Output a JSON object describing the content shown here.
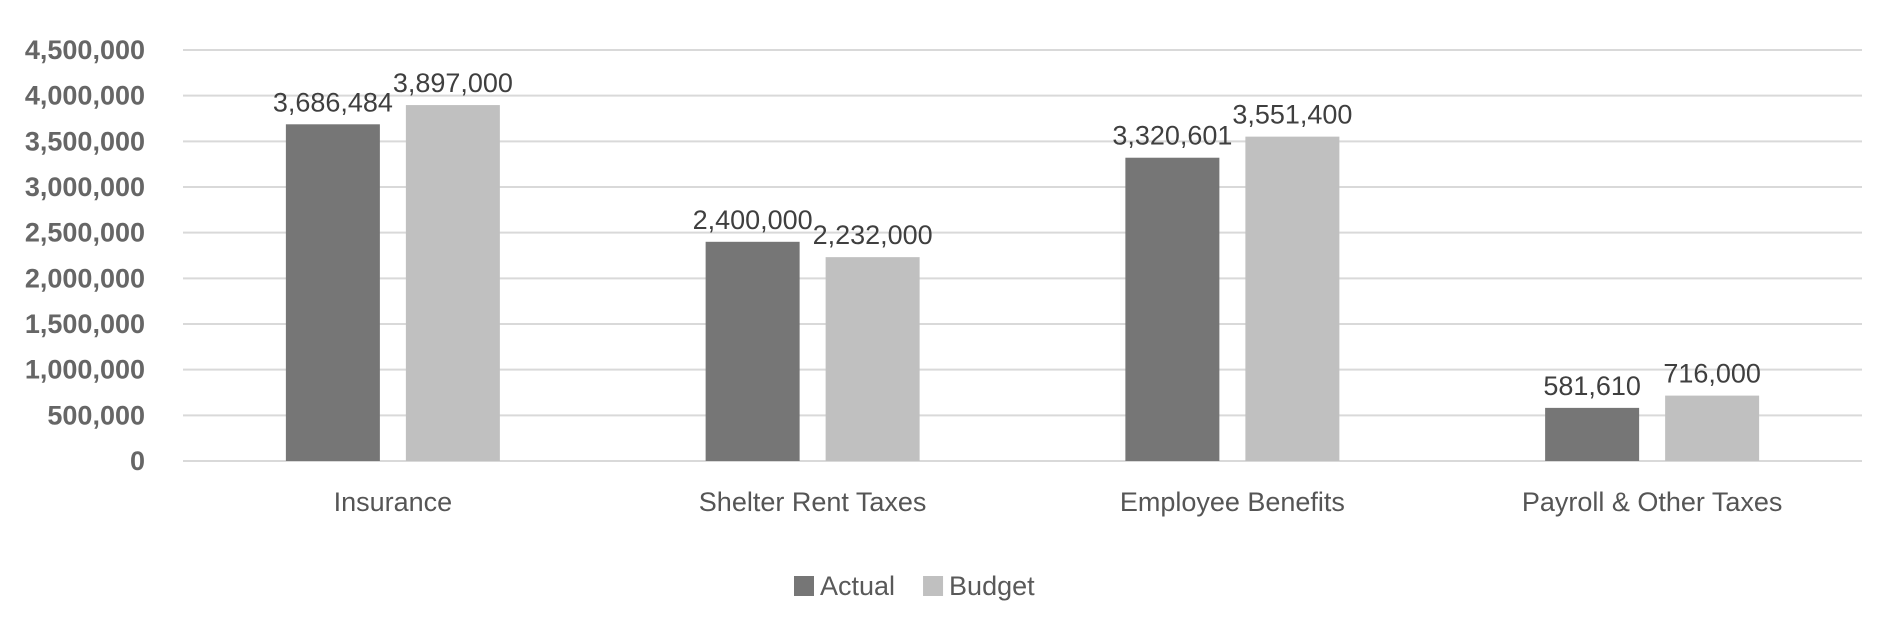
{
  "chart_data": {
    "type": "bar",
    "title": "",
    "xlabel": "",
    "ylabel": "",
    "categories": [
      "Insurance",
      "Shelter Rent Taxes",
      "Employee Benefits",
      "Payroll & Other Taxes"
    ],
    "series": [
      {
        "name": "Actual",
        "color": "#767676",
        "values": [
          3686484,
          2400000,
          3320601,
          581610
        ],
        "labels": [
          "3,686,484",
          "2,400,000",
          "3,320,601",
          "581,610"
        ]
      },
      {
        "name": "Budget",
        "color": "#c0c0c0",
        "values": [
          3897000,
          2232000,
          3551400,
          716000
        ],
        "labels": [
          "3,897,000",
          "2,232,000",
          "3,551,400",
          "716,000"
        ]
      }
    ],
    "ylim": [
      0,
      4500000
    ],
    "yticks": [
      0,
      500000,
      1000000,
      1500000,
      2000000,
      2500000,
      3000000,
      3500000,
      4000000,
      4500000
    ],
    "ytick_labels": [
      "0",
      "500,000",
      "1,000,000",
      "1,500,000",
      "2,000,000",
      "2,500,000",
      "3,000,000",
      "3,500,000",
      "4,000,000",
      "4,500,000"
    ],
    "grid": true,
    "legend": "bottom-center",
    "gridline_color": "#d9d9d9"
  }
}
